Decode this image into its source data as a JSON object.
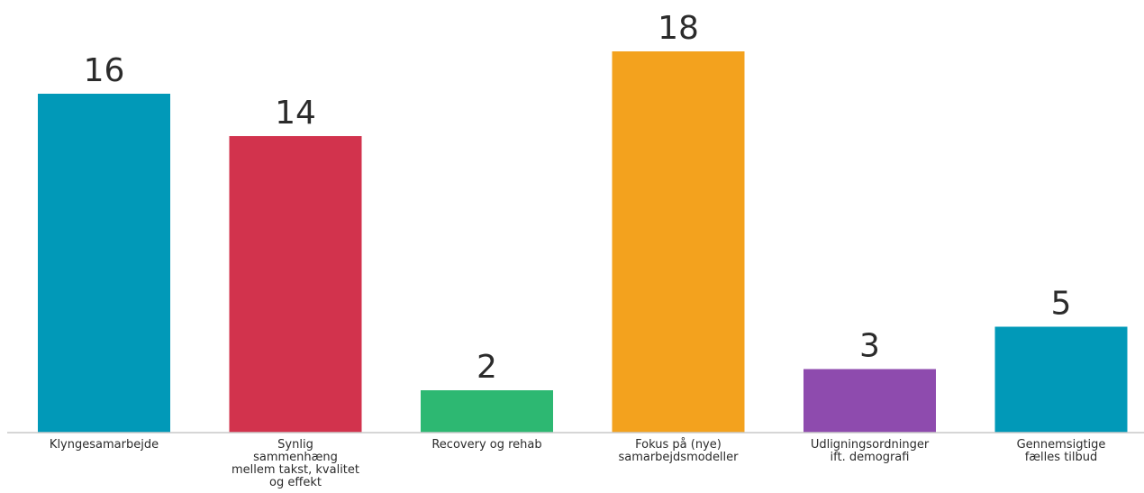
{
  "chart_data": {
    "type": "bar",
    "categories": [
      [
        "Klyngesamarbejde"
      ],
      [
        "Synlig",
        "sammenhæng",
        "mellem takst, kvalitet",
        "og effekt"
      ],
      [
        "Recovery og rehab"
      ],
      [
        "Fokus på (nye)",
        "samarbejdsmodeller"
      ],
      [
        "Udligningsordninger",
        "ift. demografi"
      ],
      [
        "Gennemsigtige",
        "fælles tilbud"
      ]
    ],
    "values": [
      16,
      14,
      2,
      18,
      3,
      5
    ],
    "colors": [
      "#0199b8",
      "#d2334d",
      "#2db872",
      "#f3a21e",
      "#8e4bae",
      "#0199b8"
    ],
    "data_labels": true,
    "grid": false,
    "legend": "none",
    "ylim": [
      0,
      18
    ]
  }
}
